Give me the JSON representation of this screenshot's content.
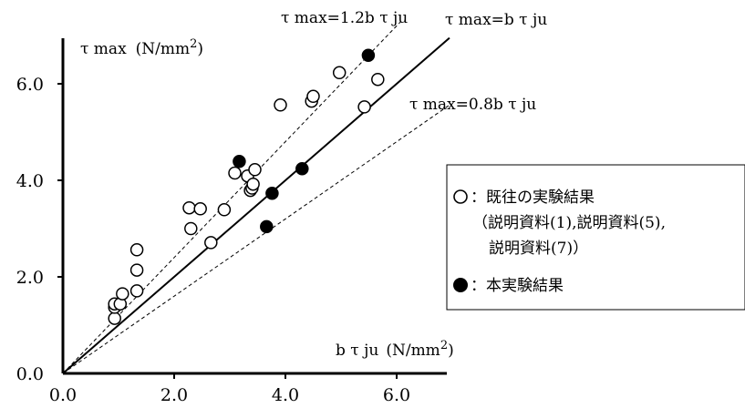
{
  "chart_data": {
    "type": "scatter",
    "xlim": [
      0,
      7
    ],
    "ylim": [
      0,
      7
    ],
    "x_ticks": [
      "0.0",
      "2.0",
      "4.0",
      "6.0"
    ],
    "y_ticks": [
      "0.0",
      "2.0",
      "4.0",
      "6.0"
    ],
    "x_tick_values": [
      0,
      2,
      4,
      6
    ],
    "y_tick_values": [
      0,
      2,
      4,
      6
    ],
    "ylabel": "τ max (N/mm²)",
    "ylabel_parts": {
      "sym": "τ max",
      "unit": "(N/mm",
      "sup": "2",
      "close": ")"
    },
    "xlabel": "b τ ju (N/mm²)",
    "xlabel_parts": {
      "sym": "b τ ju",
      "unit": "(N/mm",
      "sup": "2",
      "close": ")"
    },
    "lines": [
      {
        "label": "τ max=1.2b τ ju",
        "slope": 1.2,
        "style": "dashed"
      },
      {
        "label": "τ max=b τ ju",
        "slope": 1.0,
        "style": "solid"
      },
      {
        "label": "τ max=0.8b τ ju",
        "slope": 0.8,
        "style": "dashed"
      }
    ],
    "series": [
      {
        "name": "既往の実験結果",
        "marker": "open-circle",
        "points": [
          [
            0.93,
            1.14
          ],
          [
            0.93,
            1.37
          ],
          [
            0.93,
            1.44
          ],
          [
            1.03,
            1.44
          ],
          [
            1.07,
            1.65
          ],
          [
            1.33,
            1.71
          ],
          [
            1.33,
            2.14
          ],
          [
            1.33,
            2.56
          ],
          [
            2.3,
            3.0
          ],
          [
            2.27,
            3.43
          ],
          [
            2.47,
            3.41
          ],
          [
            2.66,
            2.71
          ],
          [
            2.9,
            3.39
          ],
          [
            3.09,
            4.15
          ],
          [
            3.32,
            4.09
          ],
          [
            3.37,
            3.79
          ],
          [
            3.4,
            3.84
          ],
          [
            3.42,
            3.92
          ],
          [
            3.45,
            4.22
          ],
          [
            3.91,
            5.56
          ],
          [
            4.47,
            5.64
          ],
          [
            4.5,
            5.74
          ],
          [
            4.97,
            6.23
          ],
          [
            5.42,
            5.52
          ],
          [
            5.66,
            6.09
          ]
        ]
      },
      {
        "name": "本実験結果",
        "marker": "filled-circle",
        "points": [
          [
            3.17,
            4.39
          ],
          [
            3.66,
            3.04
          ],
          [
            3.76,
            3.73
          ],
          [
            4.3,
            4.24
          ],
          [
            5.49,
            6.59
          ]
        ]
      }
    ],
    "legend": {
      "placement": "right",
      "entries": [
        {
          "symbol": "○",
          "lines": [
            "：既往の実験結果",
            "（説明資料(1),説明資料(5),",
            "説明資料(7)）"
          ]
        },
        {
          "symbol": "●",
          "lines": [
            "：本実験結果"
          ]
        }
      ]
    }
  }
}
